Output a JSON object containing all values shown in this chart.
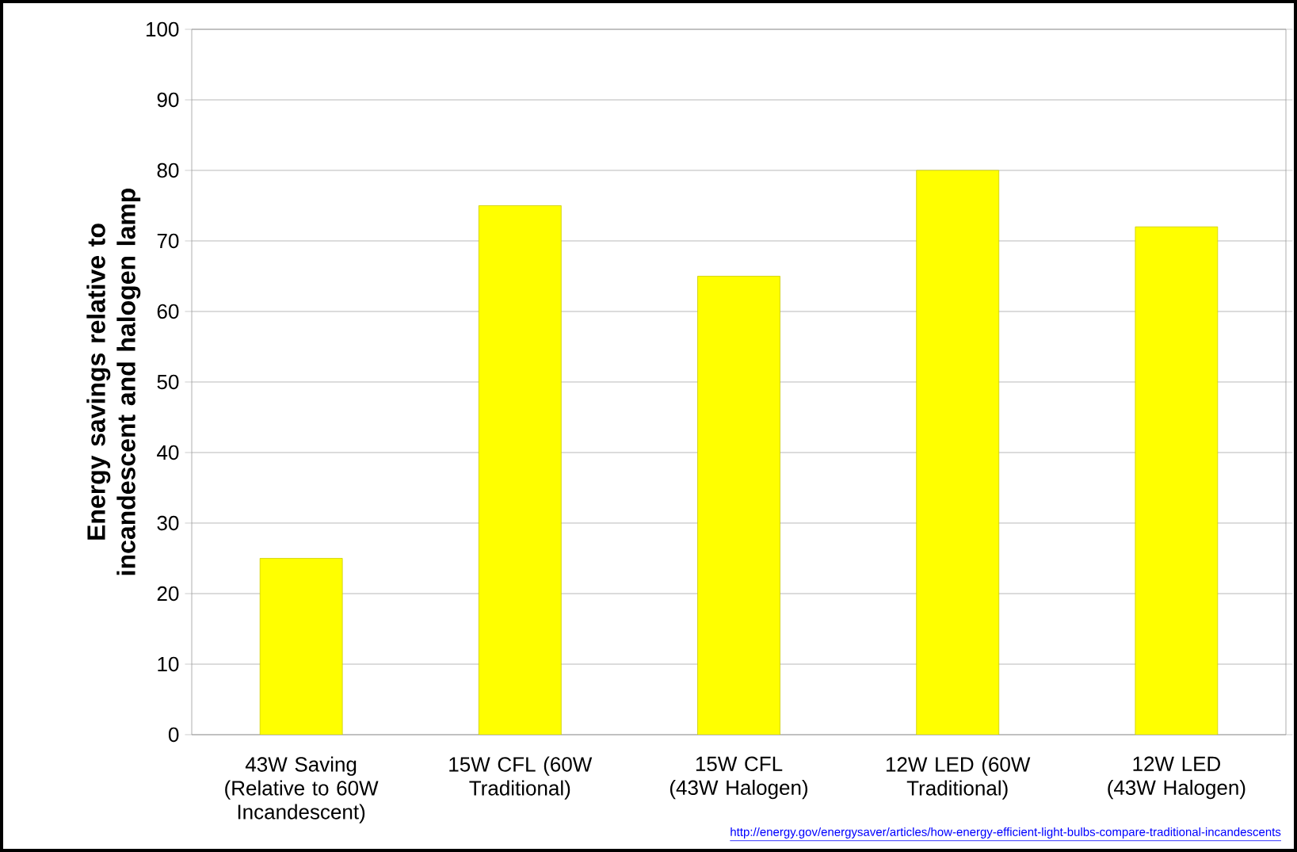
{
  "chart_data": {
    "type": "bar",
    "ylabel": "Energy savings relative to incandescent and halogen lamp",
    "categories": [
      "43W Saving (Relative to 60W Incandescent)",
      "15W CFL (60W Traditional)",
      "15W CFL (43W Halogen)",
      "12W LED (60W Traditional)",
      "12W LED (43W Halogen)"
    ],
    "values": [
      25,
      75,
      65,
      80,
      72
    ],
    "color": "#ffff00",
    "ylim": [
      0,
      100
    ],
    "yticks": [
      0,
      10,
      20,
      30,
      40,
      50,
      60,
      70,
      80,
      90,
      100
    ],
    "grid": "y",
    "annotations": [
      "http://energy.gov/energysaver/articles/how-energy-efficient-light-bulbs-compare-traditional-incandescents"
    ]
  }
}
